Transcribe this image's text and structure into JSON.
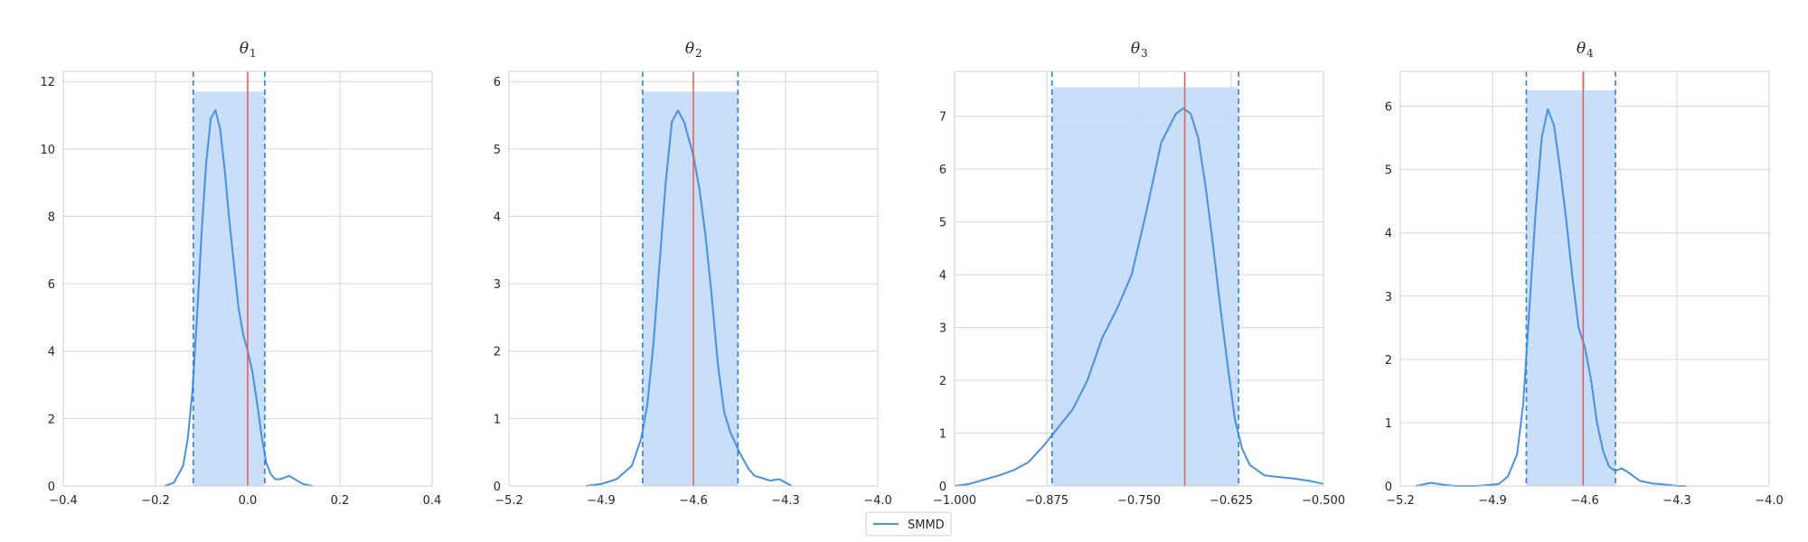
{
  "chart_data": [
    {
      "type": "line",
      "title": "θ",
      "title_sub": "1",
      "xlim": [
        -0.4,
        0.4
      ],
      "ylim": [
        0,
        12.3
      ],
      "xticks": [
        -0.4,
        -0.2,
        0.0,
        0.2,
        0.4
      ],
      "xtick_labels": [
        "−0.4",
        "−0.2",
        "0.0",
        "0.2",
        "0.4"
      ],
      "yticks": [
        0,
        2,
        4,
        6,
        8,
        10,
        12
      ],
      "ytick_labels": [
        "0",
        "2",
        "4",
        "6",
        "8",
        "10",
        "12"
      ],
      "interval": [
        -0.118,
        0.037
      ],
      "interval_height": 11.7,
      "true_value": 0.0,
      "series": [
        {
          "name": "SMMD",
          "x": [
            -0.18,
            -0.16,
            -0.14,
            -0.13,
            -0.12,
            -0.11,
            -0.1,
            -0.09,
            -0.08,
            -0.07,
            -0.06,
            -0.05,
            -0.04,
            -0.03,
            -0.02,
            -0.01,
            0.0,
            0.01,
            0.02,
            0.03,
            0.04,
            0.05,
            0.06,
            0.07,
            0.08,
            0.09,
            0.1,
            0.12,
            0.14
          ],
          "y": [
            0.0,
            0.1,
            0.6,
            1.4,
            2.8,
            5.0,
            7.5,
            9.6,
            10.9,
            11.15,
            10.6,
            9.4,
            7.9,
            6.6,
            5.3,
            4.5,
            4.0,
            3.4,
            2.5,
            1.5,
            0.7,
            0.35,
            0.2,
            0.2,
            0.25,
            0.3,
            0.22,
            0.06,
            0.0
          ]
        }
      ]
    },
    {
      "type": "line",
      "title": "θ",
      "title_sub": "2",
      "xlim": [
        -5.2,
        -4.0
      ],
      "ylim": [
        0,
        6.15
      ],
      "xticks": [
        -5.2,
        -4.9,
        -4.6,
        -4.3,
        -4.0
      ],
      "xtick_labels": [
        "−5.2",
        "−4.9",
        "−4.6",
        "−4.3",
        "−4.0"
      ],
      "yticks": [
        0,
        1,
        2,
        3,
        4,
        5,
        6
      ],
      "ytick_labels": [
        "0",
        "1",
        "2",
        "3",
        "4",
        "5",
        "6"
      ],
      "interval": [
        -4.765,
        -4.455
      ],
      "interval_height": 5.85,
      "true_value": -4.6,
      "series": [
        {
          "name": "SMMD",
          "x": [
            -4.95,
            -4.9,
            -4.85,
            -4.8,
            -4.77,
            -4.75,
            -4.73,
            -4.71,
            -4.69,
            -4.67,
            -4.65,
            -4.63,
            -4.6,
            -4.58,
            -4.56,
            -4.54,
            -4.52,
            -4.5,
            -4.48,
            -4.45,
            -4.42,
            -4.4,
            -4.35,
            -4.32,
            -4.3,
            -4.28
          ],
          "y": [
            0.0,
            0.03,
            0.1,
            0.3,
            0.7,
            1.2,
            2.1,
            3.3,
            4.5,
            5.4,
            5.57,
            5.4,
            4.9,
            4.4,
            3.7,
            2.8,
            1.8,
            1.1,
            0.8,
            0.5,
            0.25,
            0.15,
            0.08,
            0.1,
            0.05,
            0.0
          ]
        }
      ]
    },
    {
      "type": "line",
      "title": "θ",
      "title_sub": "3",
      "xlim": [
        -1.0,
        -0.5
      ],
      "ylim": [
        0,
        7.85
      ],
      "xticks": [
        -1.0,
        -0.875,
        -0.75,
        -0.625,
        -0.5
      ],
      "xtick_labels": [
        "−1.000",
        "−0.875",
        "−0.750",
        "−0.625",
        "−0.500"
      ],
      "yticks": [
        0,
        1,
        2,
        3,
        4,
        5,
        6,
        7
      ],
      "ytick_labels": [
        "0",
        "1",
        "2",
        "3",
        "4",
        "5",
        "6",
        "7"
      ],
      "interval": [
        -0.868,
        -0.615
      ],
      "interval_height": 7.55,
      "true_value": -0.688,
      "series": [
        {
          "name": "SMMD",
          "x": [
            -1.0,
            -0.98,
            -0.96,
            -0.94,
            -0.92,
            -0.9,
            -0.88,
            -0.86,
            -0.84,
            -0.82,
            -0.8,
            -0.78,
            -0.76,
            -0.74,
            -0.72,
            -0.7,
            -0.69,
            -0.68,
            -0.67,
            -0.66,
            -0.65,
            -0.64,
            -0.63,
            -0.62,
            -0.61,
            -0.6,
            -0.58,
            -0.56,
            -0.54,
            -0.52,
            -0.5
          ],
          "y": [
            0.0,
            0.04,
            0.12,
            0.2,
            0.3,
            0.45,
            0.75,
            1.1,
            1.45,
            2.0,
            2.8,
            3.35,
            4.0,
            5.2,
            6.5,
            7.05,
            7.15,
            7.05,
            6.6,
            5.7,
            4.6,
            3.4,
            2.3,
            1.25,
            0.7,
            0.4,
            0.2,
            0.17,
            0.14,
            0.1,
            0.04
          ]
        }
      ]
    },
    {
      "type": "line",
      "title": "θ",
      "title_sub": "4",
      "xlim": [
        -5.2,
        -4.0
      ],
      "ylim": [
        0,
        6.55
      ],
      "xticks": [
        -5.2,
        -4.9,
        -4.6,
        -4.3,
        -4.0
      ],
      "xtick_labels": [
        "−5.2",
        "−4.9",
        "−4.6",
        "−4.3",
        "−4.0"
      ],
      "yticks": [
        0,
        1,
        2,
        3,
        4,
        5,
        6
      ],
      "ytick_labels": [
        "0",
        "1",
        "2",
        "3",
        "4",
        "5",
        "6"
      ],
      "interval": [
        -4.79,
        -4.5
      ],
      "interval_height": 6.25,
      "true_value": -4.605,
      "series": [
        {
          "name": "SMMD",
          "x": [
            -5.15,
            -5.1,
            -5.06,
            -5.02,
            -4.95,
            -4.88,
            -4.85,
            -4.82,
            -4.8,
            -4.78,
            -4.76,
            -4.74,
            -4.72,
            -4.7,
            -4.68,
            -4.66,
            -4.64,
            -4.62,
            -4.6,
            -4.58,
            -4.56,
            -4.54,
            -4.52,
            -4.5,
            -4.48,
            -4.46,
            -4.42,
            -4.38,
            -4.33,
            -4.3,
            -4.27
          ],
          "y": [
            0.0,
            0.05,
            0.02,
            0.0,
            0.0,
            0.03,
            0.15,
            0.5,
            1.3,
            2.8,
            4.3,
            5.5,
            5.95,
            5.7,
            5.0,
            4.2,
            3.3,
            2.5,
            2.2,
            1.7,
            1.0,
            0.55,
            0.3,
            0.24,
            0.28,
            0.22,
            0.08,
            0.04,
            0.02,
            0.0,
            0.0
          ]
        }
      ]
    }
  ],
  "legend": {
    "label": "SMMD",
    "placement": "bottom-center"
  },
  "colors": {
    "density": "#4a90e2",
    "interval_fill": "#c5dcf9",
    "interval_line": "#2f7ee6",
    "true_line": "#f05a5a",
    "grid": "#d6d6d6",
    "spine": "#cfcfcf"
  }
}
